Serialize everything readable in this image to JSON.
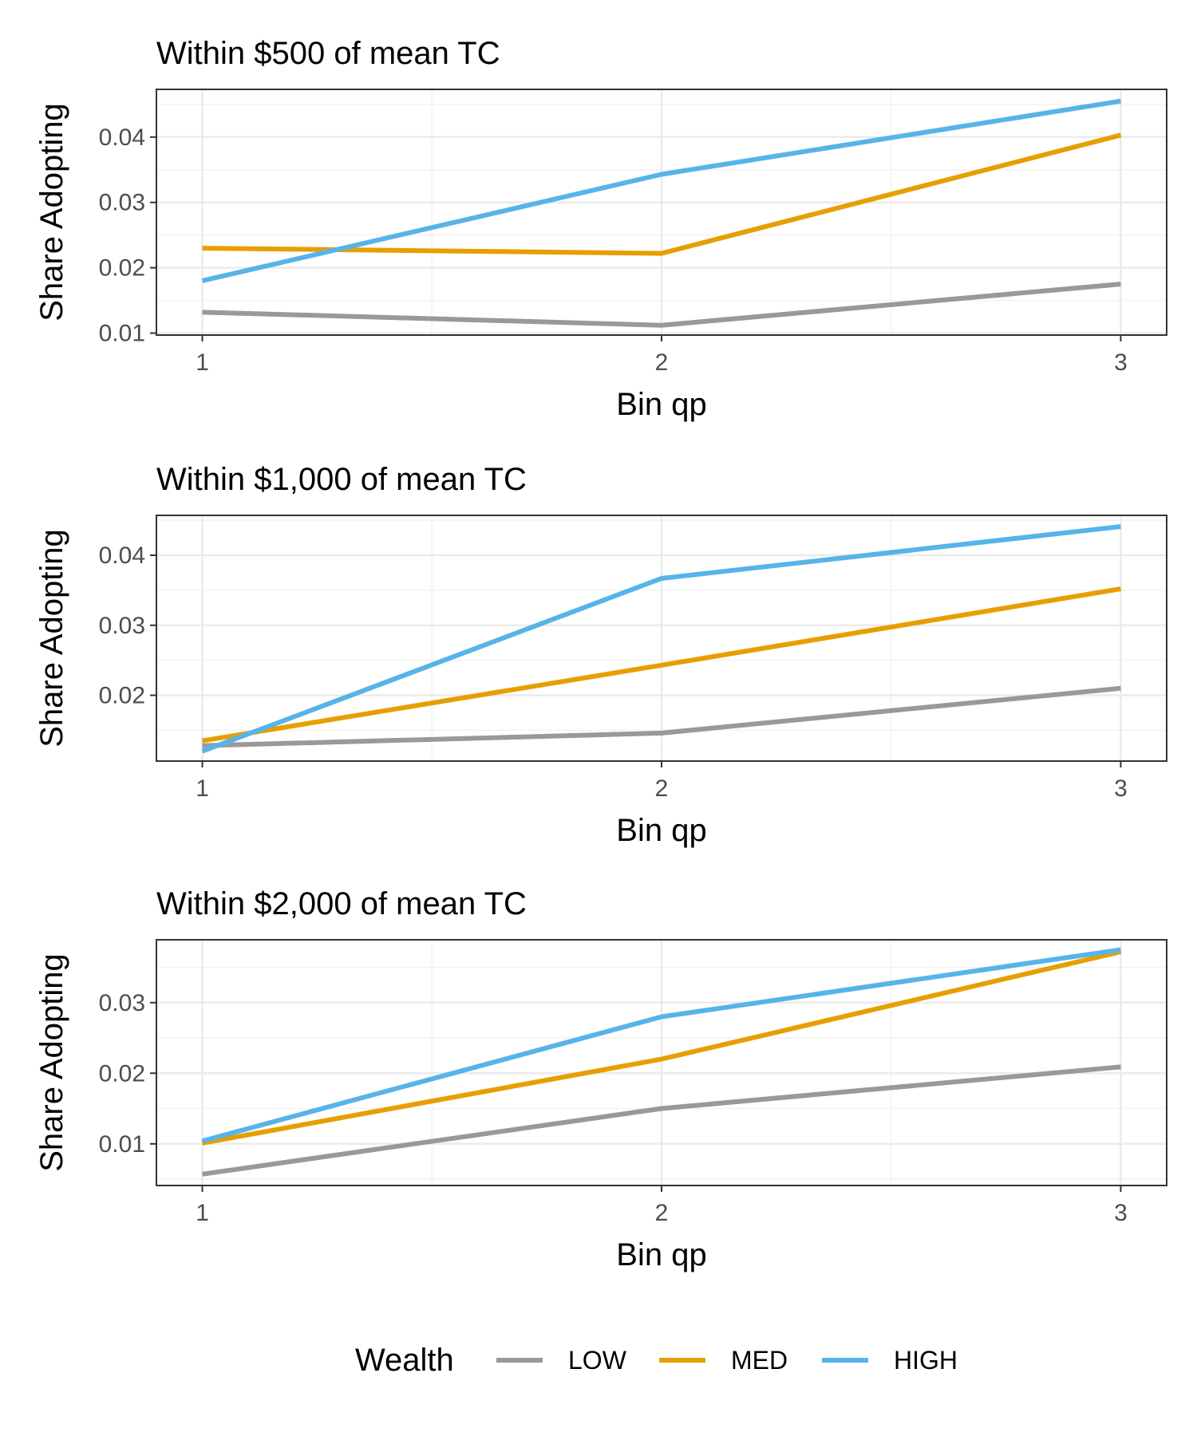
{
  "legend": {
    "title": "Wealth",
    "items": [
      {
        "label": "LOW",
        "color": "#999999"
      },
      {
        "label": "MED",
        "color": "#E69F00"
      },
      {
        "label": "HIGH",
        "color": "#56B4E9"
      }
    ]
  },
  "chart_data": [
    {
      "type": "line",
      "title": "Within $500 of mean TC",
      "xlabel": "Bin qp",
      "ylabel": "Share Adopting",
      "x": [
        1,
        2,
        3
      ],
      "xticks": [
        "1",
        "2",
        "3"
      ],
      "yticks": [
        0.01,
        0.02,
        0.03,
        0.04
      ],
      "ytick_labels": [
        "0.01",
        "0.02",
        "0.03",
        "0.04"
      ],
      "xlim": [
        0.9,
        3.1
      ],
      "ylim": [
        0.0097,
        0.0473
      ],
      "grid": true,
      "series": [
        {
          "name": "LOW",
          "color": "#999999",
          "values": [
            0.0132,
            0.0112,
            0.0175
          ]
        },
        {
          "name": "MED",
          "color": "#E69F00",
          "values": [
            0.023,
            0.0222,
            0.0403
          ]
        },
        {
          "name": "HIGH",
          "color": "#56B4E9",
          "values": [
            0.018,
            0.0343,
            0.0455
          ]
        }
      ]
    },
    {
      "type": "line",
      "title": "Within $1,000 of mean TC",
      "xlabel": "Bin qp",
      "ylabel": "Share Adopting",
      "x": [
        1,
        2,
        3
      ],
      "xticks": [
        "1",
        "2",
        "3"
      ],
      "yticks": [
        0.02,
        0.03,
        0.04
      ],
      "ytick_labels": [
        "0.02",
        "0.03",
        "0.04"
      ],
      "xlim": [
        0.9,
        3.1
      ],
      "ylim": [
        0.0106,
        0.0457
      ],
      "grid": true,
      "series": [
        {
          "name": "LOW",
          "color": "#999999",
          "values": [
            0.0128,
            0.0146,
            0.021
          ]
        },
        {
          "name": "MED",
          "color": "#E69F00",
          "values": [
            0.0135,
            0.0243,
            0.0352
          ]
        },
        {
          "name": "HIGH",
          "color": "#56B4E9",
          "values": [
            0.012,
            0.0367,
            0.0441
          ]
        }
      ]
    },
    {
      "type": "line",
      "title": "Within $2,000 of mean TC",
      "xlabel": "Bin qp",
      "ylabel": "Share Adopting",
      "x": [
        1,
        2,
        3
      ],
      "xticks": [
        "1",
        "2",
        "3"
      ],
      "yticks": [
        0.01,
        0.02,
        0.03
      ],
      "ytick_labels": [
        "0.01",
        "0.02",
        "0.03"
      ],
      "xlim": [
        0.9,
        3.1
      ],
      "ylim": [
        0.0041,
        0.0389
      ],
      "grid": true,
      "series": [
        {
          "name": "LOW",
          "color": "#999999",
          "values": [
            0.0057,
            0.015,
            0.0209
          ]
        },
        {
          "name": "MED",
          "color": "#E69F00",
          "values": [
            0.0101,
            0.022,
            0.0372
          ]
        },
        {
          "name": "HIGH",
          "color": "#56B4E9",
          "values": [
            0.0104,
            0.028,
            0.0375
          ]
        }
      ]
    }
  ]
}
